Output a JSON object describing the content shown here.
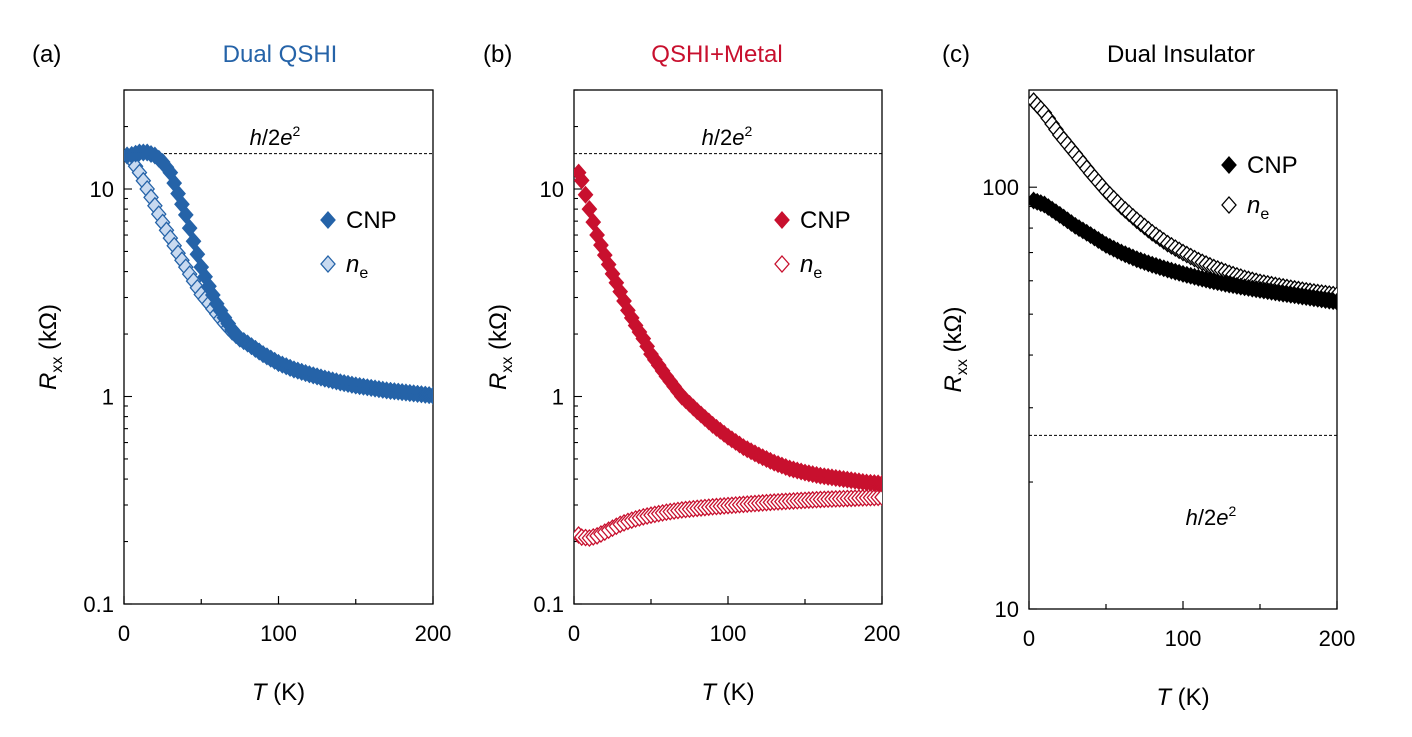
{
  "figure": {
    "x_axis_label": "T",
    "x_axis_unit": " (K)",
    "y_axis_label": "R",
    "y_axis_sub": "xx",
    "y_axis_unit": " (kΩ)",
    "h_label": {
      "h": "h",
      "slash2": "/2",
      "e": "e",
      "sup": "2"
    },
    "legend_cnp": "CNP",
    "legend_ne_main": "n",
    "legend_ne_sub": "e"
  },
  "chart_data": [
    {
      "panel": "(a)",
      "title": "Dual QSHI",
      "title_color": "#2563a8",
      "type": "scatter",
      "y_scale": "log",
      "xlim": [
        0,
        200
      ],
      "ylim": [
        0.1,
        30
      ],
      "xticks": [
        0,
        100,
        200
      ],
      "xtick_labels": [
        "0",
        "100",
        "200"
      ],
      "yticks": [
        0.1,
        1,
        10
      ],
      "ytick_labels": [
        "0.1",
        "1",
        "10"
      ],
      "reference_line": {
        "y": 14.8
      },
      "legend_position": "right",
      "series": [
        {
          "name": "CNP",
          "marker": "filled-diamond",
          "color": "#2563a8",
          "x": [
            2,
            5,
            10,
            15,
            20,
            25,
            30,
            35,
            40,
            45,
            50,
            55,
            60,
            65,
            70,
            75,
            80,
            90,
            100,
            110,
            120,
            130,
            140,
            150,
            160,
            170,
            180,
            190,
            200
          ],
          "y": [
            14.5,
            14.6,
            15.0,
            15.0,
            14.5,
            13.5,
            12.0,
            9.5,
            7.5,
            5.6,
            4.2,
            3.4,
            2.8,
            2.4,
            2.1,
            1.9,
            1.8,
            1.6,
            1.45,
            1.35,
            1.28,
            1.22,
            1.17,
            1.13,
            1.1,
            1.07,
            1.05,
            1.03,
            1.01
          ]
        },
        {
          "name": "ne",
          "marker": "open-diamond",
          "color": "#2563a8",
          "x": [
            2,
            5,
            10,
            15,
            20,
            25,
            30,
            35,
            40,
            45,
            50,
            55,
            60,
            65,
            70,
            75,
            80,
            90,
            100,
            110,
            120,
            130,
            140,
            150,
            160,
            170,
            180,
            190,
            200
          ],
          "y": [
            14.5,
            13.8,
            12.0,
            10.0,
            8.3,
            6.9,
            5.8,
            4.9,
            4.2,
            3.6,
            3.1,
            2.8,
            2.5,
            2.25,
            2.05,
            1.9,
            1.8,
            1.6,
            1.45,
            1.35,
            1.28,
            1.22,
            1.17,
            1.13,
            1.1,
            1.07,
            1.05,
            1.03,
            1.01
          ]
        }
      ]
    },
    {
      "panel": "(b)",
      "title": "QSHI+Metal",
      "title_color": "#c8102e",
      "type": "scatter",
      "y_scale": "log",
      "xlim": [
        0,
        200
      ],
      "ylim": [
        0.1,
        30
      ],
      "xticks": [
        0,
        100,
        200
      ],
      "xtick_labels": [
        "0",
        "100",
        "200"
      ],
      "yticks": [
        0.1,
        1,
        10
      ],
      "ytick_labels": [
        "0.1",
        "1",
        "10"
      ],
      "reference_line": {
        "y": 14.8
      },
      "legend_position": "right",
      "series": [
        {
          "name": "CNP",
          "marker": "filled-diamond",
          "color": "#c8102e",
          "x": [
            3,
            5,
            10,
            15,
            20,
            25,
            30,
            35,
            40,
            45,
            50,
            60,
            70,
            80,
            90,
            100,
            110,
            120,
            130,
            140,
            150,
            160,
            170,
            180,
            190,
            200
          ],
          "y": [
            12.0,
            11.0,
            8.0,
            6.0,
            4.8,
            3.9,
            3.2,
            2.6,
            2.2,
            1.9,
            1.6,
            1.25,
            1.0,
            0.85,
            0.73,
            0.64,
            0.57,
            0.52,
            0.48,
            0.45,
            0.43,
            0.415,
            0.405,
            0.395,
            0.385,
            0.38
          ]
        },
        {
          "name": "ne",
          "marker": "open-diamond",
          "color": "#c8102e",
          "x": [
            3,
            5,
            10,
            15,
            20,
            25,
            30,
            35,
            40,
            45,
            50,
            60,
            70,
            80,
            90,
            100,
            110,
            120,
            130,
            140,
            150,
            160,
            170,
            180,
            190,
            200
          ],
          "y": [
            0.215,
            0.21,
            0.208,
            0.213,
            0.222,
            0.232,
            0.242,
            0.25,
            0.257,
            0.263,
            0.268,
            0.277,
            0.284,
            0.289,
            0.294,
            0.298,
            0.302,
            0.306,
            0.31,
            0.313,
            0.316,
            0.319,
            0.321,
            0.323,
            0.325,
            0.327
          ]
        }
      ]
    },
    {
      "panel": "(c)",
      "title": "Dual Insulator",
      "title_color": "#000000",
      "type": "scatter",
      "y_scale": "log",
      "xlim": [
        0,
        200
      ],
      "ylim": [
        10,
        170
      ],
      "xticks": [
        0,
        100,
        200
      ],
      "xtick_labels": [
        "0",
        "100",
        "200"
      ],
      "yticks": [
        10,
        100
      ],
      "ytick_labels": [
        "10",
        "100"
      ],
      "reference_line": {
        "y": 25.8
      },
      "legend_position": "top-right",
      "series": [
        {
          "name": "CNP",
          "marker": "filled-diamond",
          "color": "#000000",
          "x": [
            3,
            10,
            20,
            30,
            40,
            50,
            60,
            70,
            80,
            90,
            100,
            110,
            120,
            130,
            140,
            150,
            160,
            170,
            180,
            190,
            200
          ],
          "y": [
            93,
            91,
            86,
            81,
            77,
            73,
            70,
            67.5,
            65.5,
            63.8,
            62.3,
            61.0,
            59.8,
            58.8,
            57.9,
            57.1,
            56.3,
            55.6,
            54.9,
            54.2,
            53.5
          ]
        },
        {
          "name": "ne",
          "marker": "open-diamond",
          "color": "#000000",
          "x": [
            3,
            10,
            20,
            30,
            40,
            50,
            60,
            70,
            80,
            90,
            100,
            110,
            120,
            130,
            140,
            150,
            160,
            170,
            180,
            190,
            200
          ],
          "y": [
            160,
            150,
            133,
            120,
            108,
            98,
            90,
            83.5,
            78,
            73.5,
            70,
            67,
            64.5,
            62.5,
            60.8,
            59.5,
            58.5,
            57.6,
            56.8,
            56.1,
            55.5
          ]
        }
      ]
    }
  ]
}
